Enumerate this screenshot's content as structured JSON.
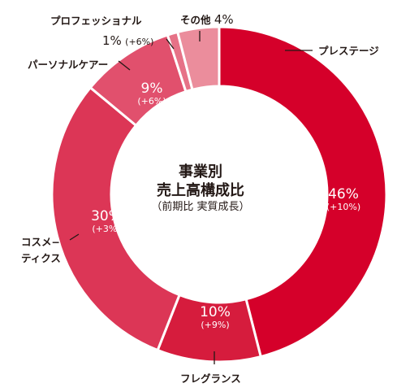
{
  "center": {
    "title_line1": "事業別",
    "title_line2": "売上高構成比",
    "subtitle": "（前期比 実質成長）"
  },
  "chart_data": {
    "type": "pie",
    "title": "事業別 売上高構成比",
    "subtitle": "（前期比 実質成長）",
    "donut": true,
    "start": "12 o'clock",
    "direction": "clockwise",
    "slices": [
      {
        "label": "プレステージ",
        "value": 46,
        "value_label": "46%",
        "change": "(+10%)",
        "color": "#d5002a"
      },
      {
        "label": "フレグランス",
        "value": 10,
        "value_label": "10%",
        "change": "(+9%)",
        "color": "#d61c3d"
      },
      {
        "label": "コスメ−ティクス",
        "value": 30,
        "value_label": "30%",
        "change": "(+3%)",
        "color": "#dc3656"
      },
      {
        "label": "パーソナルケアー",
        "value": 9,
        "value_label": "9%",
        "change": "(+6%)",
        "color": "#e1506d"
      },
      {
        "label": "プロフェッショナル",
        "value": 1,
        "value_label": "1%",
        "change": "(+6%)",
        "color": "#e67287"
      },
      {
        "label": "その他",
        "value": 4,
        "value_label": "4%",
        "change": "",
        "color": "#eb8d9c"
      }
    ]
  },
  "labels": {
    "prestige": "プレステージ",
    "fragrance": "フレグランス",
    "cosmetics_line1": "コスメ−",
    "cosmetics_line2": "ティクス",
    "personal": "パーソナルケアー",
    "professional": "プロフェッショナル",
    "other": "その他"
  }
}
